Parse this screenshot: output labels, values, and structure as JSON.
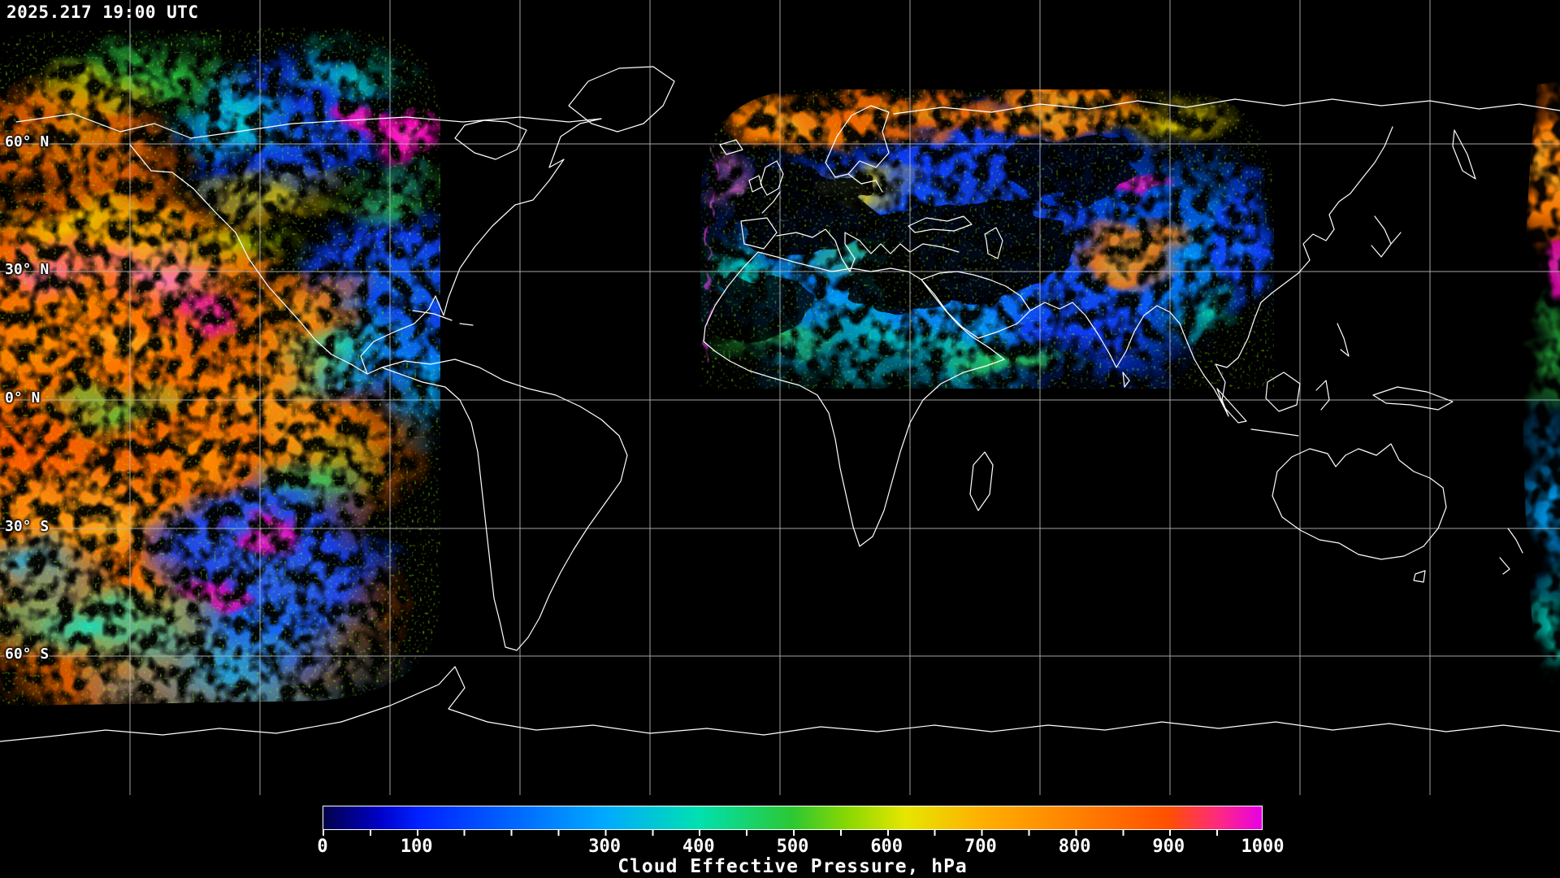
{
  "header": {
    "timestamp": "2025.217 19:00 UTC"
  },
  "map": {
    "latitude_labels": [
      "60° N",
      "30° N",
      "0° N",
      "30° S",
      "60° S"
    ],
    "background_color": "#000000",
    "coastline_color": "#ffffff",
    "grid_color": "#b4b4b4",
    "label_color": "#ffffff"
  },
  "colorbar": {
    "title": "Cloud Effective Pressure, hPa",
    "unit": "hPa",
    "min": 0,
    "max": 1000,
    "tick_labels": [
      "0",
      "100",
      "300",
      "400",
      "500",
      "600",
      "700",
      "800",
      "900",
      "1000"
    ],
    "tick_values": [
      0,
      100,
      300,
      400,
      500,
      600,
      700,
      800,
      900,
      1000
    ],
    "stops": [
      {
        "value": 0,
        "color": "#02024a"
      },
      {
        "value": 60,
        "color": "#0000c8"
      },
      {
        "value": 100,
        "color": "#0020ff"
      },
      {
        "value": 200,
        "color": "#0064ff"
      },
      {
        "value": 300,
        "color": "#00aaff"
      },
      {
        "value": 400,
        "color": "#00e0b0"
      },
      {
        "value": 500,
        "color": "#2cc832"
      },
      {
        "value": 560,
        "color": "#8cd800"
      },
      {
        "value": 620,
        "color": "#e6e600"
      },
      {
        "value": 700,
        "color": "#ffb000"
      },
      {
        "value": 800,
        "color": "#ff8200"
      },
      {
        "value": 900,
        "color": "#ff5000"
      },
      {
        "value": 955,
        "color": "#ff2882"
      },
      {
        "value": 1000,
        "color": "#e600e6"
      }
    ]
  }
}
